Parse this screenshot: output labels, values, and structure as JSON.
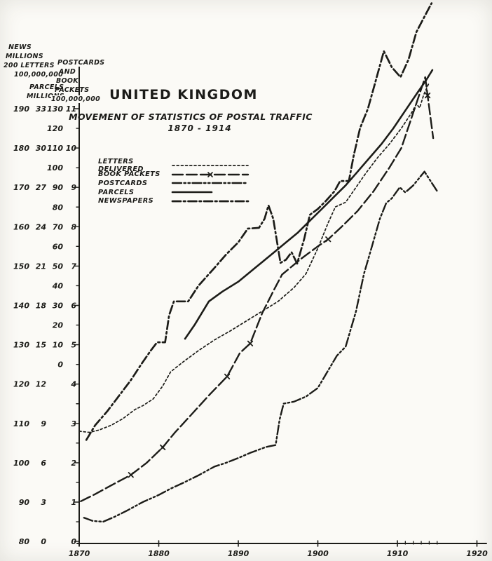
{
  "title": {
    "main": "UNITED KINGDOM",
    "subtitle": "MOVEMENT OF STATISTICS OF POSTAL TRAFFIC",
    "period": "1870 - 1914"
  },
  "axis_headers": {
    "col1": [
      "NEWS",
      "MILLIONS",
      "200 LETTERS",
      "100,000,000"
    ],
    "col2": [
      "PARCELS",
      "MILLIONS"
    ],
    "col4": [
      "POSTCARDS",
      "AND",
      "BOOK",
      "PACKETS",
      "100,000,000"
    ]
  },
  "y_axis": {
    "col1_values": [
      190,
      180,
      170,
      160,
      150,
      140,
      130,
      120,
      110,
      100,
      90,
      80
    ],
    "col2_values": [
      33,
      30,
      27,
      24,
      21,
      18,
      15,
      12,
      9,
      6,
      3,
      0
    ],
    "col3_values": [
      130,
      120,
      110,
      100,
      90,
      80,
      70,
      60,
      50,
      40,
      30,
      20,
      10,
      0
    ],
    "col4_values": [
      11,
      10,
      9,
      8,
      7,
      6,
      5,
      4,
      3,
      2,
      1,
      0
    ]
  },
  "x_axis": {
    "labels": [
      "1870",
      "1880",
      "1890",
      "1900",
      "1910",
      "1920"
    ],
    "minor_tick_years": [
      1911,
      1912,
      1913,
      1914,
      1915
    ]
  },
  "legend": [
    {
      "id": "letters",
      "label": "LETTERS DELIVERED",
      "pattern": "fine-dash"
    },
    {
      "id": "book",
      "label": "BOOK PACKETS",
      "pattern": "dash-x"
    },
    {
      "id": "postcards",
      "label": "POSTCARDS",
      "pattern": "dash-dot-dot"
    },
    {
      "id": "parcels",
      "label": "PARCELS",
      "pattern": "solid"
    },
    {
      "id": "newspapers",
      "label": "NEWSPAPERS",
      "pattern": "dash-dot"
    }
  ],
  "ink_color": "#1c1c18",
  "paper_color": "#fbfaf6",
  "chart_data": {
    "type": "line",
    "title": "UNITED KINGDOM - MOVEMENT OF STATISTICS OF POSTAL TRAFFIC 1870-1914",
    "x_range": [
      1870,
      1920
    ],
    "y_grid_units": [
      0,
      11
    ],
    "scales_note": "Hand-drawn multi-scale chart. Values are in shared grid units (1 unit = one major division). Per printed scales: left col1 (news millions / letters 100,000,000) = 80 + 10 per unit; col2 (parcels millions) = 3 per unit; col3 = 20 per unit starting at 4.5 units; col4 (postcards & book packets 100,000,000) = 1 per unit.",
    "series": [
      {
        "id": "letters",
        "name": "LETTERS DELIVERED",
        "pattern": "fine-dash",
        "scale": "col1",
        "points": [
          [
            1870,
            2.8
          ],
          [
            1871.3,
            2.77
          ],
          [
            1872.5,
            2.83
          ],
          [
            1874,
            2.95
          ],
          [
            1875.5,
            3.12
          ],
          [
            1877,
            3.35
          ],
          [
            1878,
            3.45
          ],
          [
            1879.3,
            3.62
          ],
          [
            1880.5,
            3.95
          ],
          [
            1881.5,
            4.31
          ],
          [
            1883,
            4.55
          ],
          [
            1885,
            4.85
          ],
          [
            1887,
            5.12
          ],
          [
            1889,
            5.35
          ],
          [
            1891,
            5.6
          ],
          [
            1893,
            5.85
          ],
          [
            1895,
            6.1
          ],
          [
            1897,
            6.45
          ],
          [
            1898.5,
            6.8
          ],
          [
            1900,
            7.45
          ],
          [
            1901.3,
            8.1
          ],
          [
            1902.2,
            8.5
          ],
          [
            1903.5,
            8.62
          ],
          [
            1904.8,
            9.0
          ],
          [
            1906,
            9.35
          ],
          [
            1907.5,
            9.75
          ],
          [
            1909,
            10.1
          ],
          [
            1910.5,
            10.5
          ],
          [
            1911.8,
            10.9
          ],
          [
            1912.4,
            11.12
          ],
          [
            1912.8,
            11.02
          ],
          [
            1913.3,
            11.35
          ],
          [
            1913.9,
            11.62
          ]
        ]
      },
      {
        "id": "book",
        "name": "BOOK PACKETS",
        "pattern": "dash-x",
        "scale": "col4",
        "marker_years": [
          1876.5,
          1880.5,
          1888.6,
          1891.5,
          1901.3,
          1913.8
        ],
        "points": [
          [
            1870.2,
            1.02
          ],
          [
            1872,
            1.2
          ],
          [
            1874,
            1.42
          ],
          [
            1876.5,
            1.69
          ],
          [
            1878.5,
            2.0
          ],
          [
            1880.5,
            2.39
          ],
          [
            1882,
            2.76
          ],
          [
            1884,
            3.2
          ],
          [
            1886.4,
            3.73
          ],
          [
            1888.6,
            4.19
          ],
          [
            1890.2,
            4.79
          ],
          [
            1891.5,
            5.03
          ],
          [
            1893,
            5.8
          ],
          [
            1894.5,
            6.4
          ],
          [
            1895.5,
            6.78
          ],
          [
            1896.5,
            6.95
          ],
          [
            1898,
            7.2
          ],
          [
            1900,
            7.5
          ],
          [
            1901.3,
            7.68
          ],
          [
            1903,
            8.0
          ],
          [
            1905,
            8.4
          ],
          [
            1907,
            8.9
          ],
          [
            1909,
            9.5
          ],
          [
            1910.5,
            10.0
          ],
          [
            1912,
            10.9
          ],
          [
            1913.5,
            11.8
          ],
          [
            1914.5,
            10.25
          ]
        ]
      },
      {
        "id": "postcards",
        "name": "POSTCARDS",
        "pattern": "dash-dot-dot",
        "scale": "col4",
        "points": [
          [
            1870.6,
            0.6
          ],
          [
            1871.7,
            0.52
          ],
          [
            1873,
            0.5
          ],
          [
            1874.5,
            0.63
          ],
          [
            1876,
            0.78
          ],
          [
            1878,
            1.0
          ],
          [
            1880,
            1.18
          ],
          [
            1881.5,
            1.34
          ],
          [
            1883,
            1.48
          ],
          [
            1885,
            1.68
          ],
          [
            1887,
            1.9
          ],
          [
            1888.5,
            2.0
          ],
          [
            1890,
            2.12
          ],
          [
            1891.5,
            2.25
          ],
          [
            1893.5,
            2.4
          ],
          [
            1894.7,
            2.45
          ],
          [
            1895.2,
            3.1
          ],
          [
            1895.7,
            3.5
          ],
          [
            1897,
            3.55
          ],
          [
            1898.5,
            3.68
          ],
          [
            1900,
            3.9
          ],
          [
            1901.4,
            4.38
          ],
          [
            1902.4,
            4.72
          ],
          [
            1903.5,
            4.95
          ],
          [
            1904.8,
            5.85
          ],
          [
            1905.8,
            6.8
          ],
          [
            1906.8,
            7.5
          ],
          [
            1907.8,
            8.2
          ],
          [
            1908.6,
            8.6
          ],
          [
            1909.3,
            8.72
          ],
          [
            1910.3,
            9.0
          ],
          [
            1911,
            8.87
          ],
          [
            1912,
            9.05
          ],
          [
            1913.4,
            9.4
          ],
          [
            1915,
            8.9
          ]
        ]
      },
      {
        "id": "parcels",
        "name": "PARCELS",
        "pattern": "solid",
        "scale": "col2",
        "points": [
          [
            1883.3,
            5.15
          ],
          [
            1884.5,
            5.5
          ],
          [
            1886.3,
            6.1
          ],
          [
            1888,
            6.35
          ],
          [
            1890,
            6.6
          ],
          [
            1891.5,
            6.85
          ],
          [
            1893,
            7.1
          ],
          [
            1894.5,
            7.35
          ],
          [
            1896,
            7.6
          ],
          [
            1897.5,
            7.85
          ],
          [
            1899,
            8.15
          ],
          [
            1900.5,
            8.45
          ],
          [
            1902,
            8.75
          ],
          [
            1903.5,
            9.05
          ],
          [
            1905,
            9.4
          ],
          [
            1906.5,
            9.75
          ],
          [
            1908,
            10.1
          ],
          [
            1909.5,
            10.5
          ],
          [
            1911,
            10.95
          ],
          [
            1912.5,
            11.4
          ],
          [
            1913.6,
            11.72
          ],
          [
            1914.4,
            11.98
          ]
        ]
      },
      {
        "id": "newspapers",
        "name": "NEWSPAPERS",
        "pattern": "dash-dot",
        "scale": "col1",
        "points": [
          [
            1870.9,
            2.58
          ],
          [
            1872,
            2.95
          ],
          [
            1873.5,
            3.3
          ],
          [
            1875,
            3.7
          ],
          [
            1876.5,
            4.1
          ],
          [
            1877.8,
            4.5
          ],
          [
            1879,
            4.85
          ],
          [
            1879.8,
            5.06
          ],
          [
            1880.8,
            5.06
          ],
          [
            1881.3,
            5.75
          ],
          [
            1881.9,
            6.1
          ],
          [
            1883.7,
            6.1
          ],
          [
            1885,
            6.5
          ],
          [
            1887,
            6.95
          ],
          [
            1888.5,
            7.3
          ],
          [
            1890,
            7.6
          ],
          [
            1891.2,
            7.95
          ],
          [
            1892.6,
            7.97
          ],
          [
            1893.3,
            8.2
          ],
          [
            1893.8,
            8.54
          ],
          [
            1894.4,
            8.2
          ],
          [
            1895.3,
            7.08
          ],
          [
            1896,
            7.16
          ],
          [
            1896.7,
            7.35
          ],
          [
            1897.4,
            7.06
          ],
          [
            1898.3,
            7.7
          ],
          [
            1899,
            8.3
          ],
          [
            1900,
            8.45
          ],
          [
            1901,
            8.65
          ],
          [
            1902.1,
            8.9
          ],
          [
            1902.8,
            9.16
          ],
          [
            1903.9,
            9.16
          ],
          [
            1904.5,
            9.8
          ],
          [
            1905.3,
            10.5
          ],
          [
            1906.3,
            11.0
          ],
          [
            1907.2,
            11.65
          ],
          [
            1908.3,
            12.46
          ],
          [
            1909.3,
            12.05
          ],
          [
            1910.4,
            11.8
          ],
          [
            1911.4,
            12.25
          ],
          [
            1912.4,
            12.95
          ],
          [
            1913.3,
            13.3
          ],
          [
            1914.3,
            13.68
          ]
        ]
      }
    ]
  }
}
